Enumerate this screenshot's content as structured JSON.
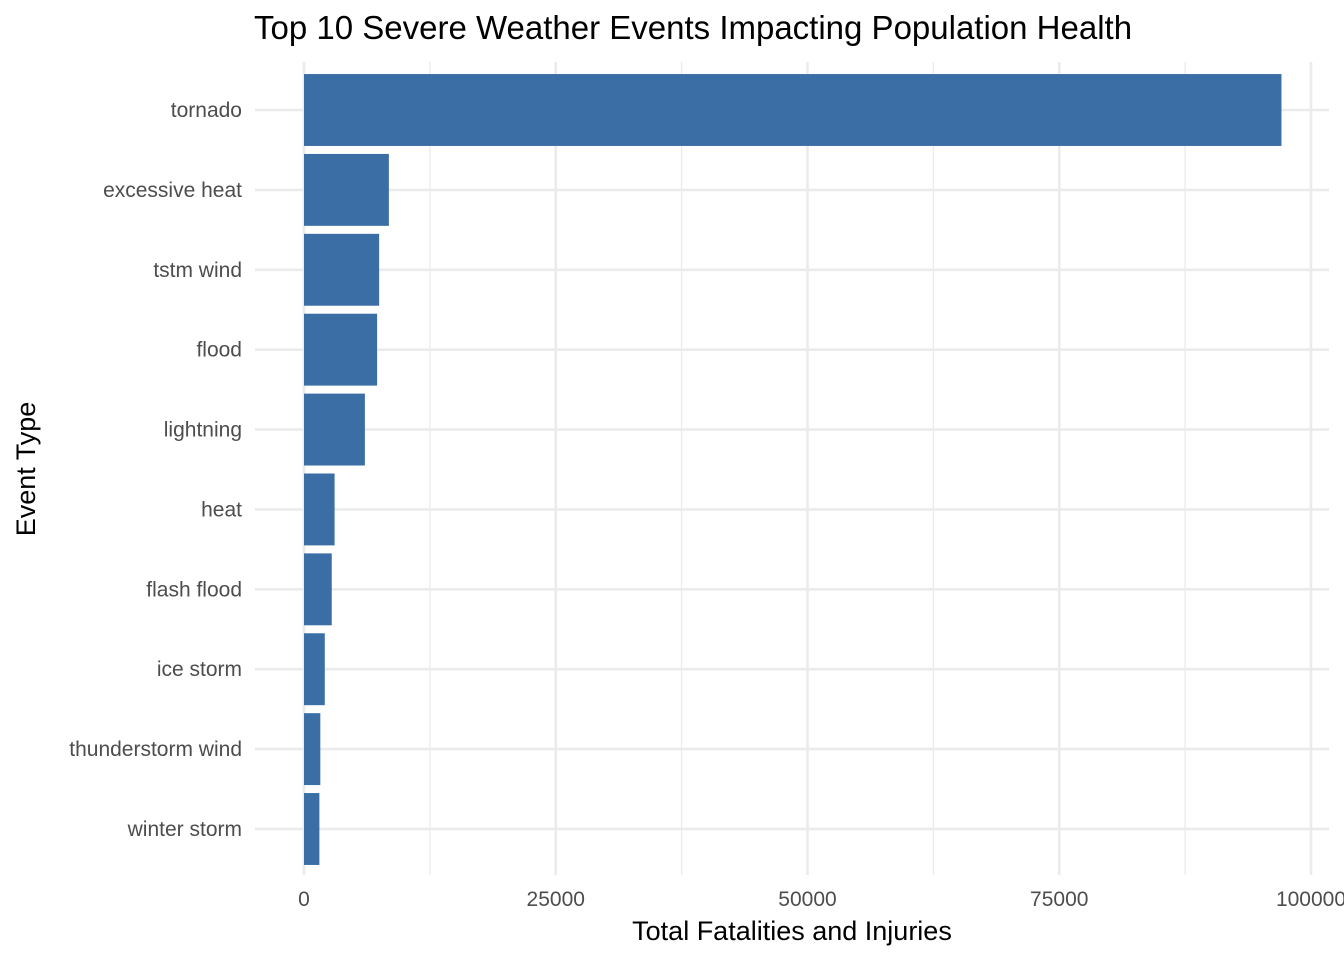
{
  "chart_data": {
    "type": "bar",
    "orientation": "horizontal",
    "title": "Top 10 Severe Weather Events Impacting Population Health",
    "xlabel": "Total Fatalities and Injuries",
    "ylabel": "Event Type",
    "categories": [
      "tornado",
      "excessive heat",
      "tstm wind",
      "flood",
      "lightning",
      "heat",
      "flash flood",
      "ice storm",
      "thunderstorm wind",
      "winter storm"
    ],
    "values": [
      97068,
      8428,
      7461,
      7259,
      6046,
      3037,
      2755,
      2064,
      1621,
      1527
    ],
    "xlim": [
      0,
      100000
    ],
    "xticks": [
      0,
      25000,
      50000,
      75000,
      100000
    ],
    "xtick_labels": [
      "0",
      "25000",
      "50000",
      "75000",
      "100000"
    ],
    "bar_color": "#3a6ea5",
    "grid": true,
    "legend": "none"
  }
}
